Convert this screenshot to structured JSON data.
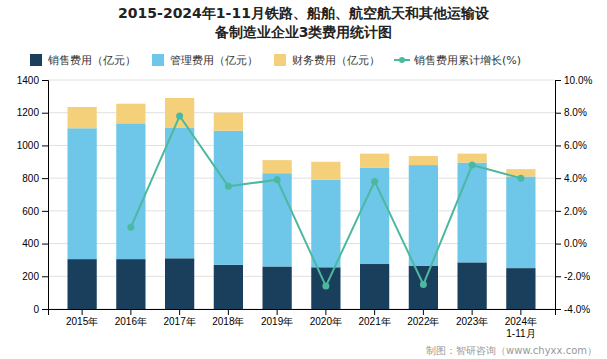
{
  "chart_data": {
    "type": "bar",
    "title": [
      "2015-2024年1-11月铁路、船舶、航空航天和其他运输设",
      "备制造业企业3类费用统计图"
    ],
    "categories": [
      "2015年",
      "2016年",
      "2017年",
      "2018年",
      "2019年",
      "2020年",
      "2021年",
      "2022年",
      "2023年",
      "2024年\n1-11月"
    ],
    "series": [
      {
        "name": "销售费用（亿元）",
        "color": "#1a3f5c",
        "values": [
          305,
          305,
          310,
          270,
          260,
          255,
          275,
          265,
          285,
          250
        ]
      },
      {
        "name": "管理费用（亿元）",
        "color": "#6ec6e8",
        "values": [
          800,
          830,
          800,
          820,
          570,
          535,
          590,
          615,
          610,
          560
        ]
      },
      {
        "name": "财务费用（亿元）",
        "color": "#f5d07a",
        "values": [
          130,
          120,
          180,
          110,
          80,
          110,
          85,
          55,
          55,
          45
        ]
      },
      {
        "name": "销售费用累计增长(%)",
        "color": "#4db8a0",
        "type": "line",
        "axis": "y2",
        "marker": "circle",
        "values": [
          null,
          1.0,
          7.8,
          3.5,
          3.9,
          -2.6,
          3.8,
          -2.5,
          4.8,
          4.0
        ]
      }
    ],
    "stacked": true,
    "ylim": [
      0,
      1400
    ],
    "yticks": [
      0,
      200,
      400,
      600,
      800,
      1000,
      1200,
      1400
    ],
    "y2lim": [
      -4.0,
      10.0
    ],
    "y2ticks": [
      {
        "value": -4.0,
        "label": "-4.0%"
      },
      {
        "value": -2.0,
        "label": "-2.0%"
      },
      {
        "value": 0.0,
        "label": "0.0%"
      },
      {
        "value": 2.0,
        "label": "2.0%"
      },
      {
        "value": 4.0,
        "label": "4.0%"
      },
      {
        "value": 6.0,
        "label": "6.0%"
      },
      {
        "value": 8.0,
        "label": "8.0%"
      },
      {
        "value": 10.0,
        "label": "10.0%"
      }
    ],
    "grid": true,
    "legend": "top",
    "annotations": [
      "制图：智研咨询（www.chyxx.com）"
    ]
  }
}
